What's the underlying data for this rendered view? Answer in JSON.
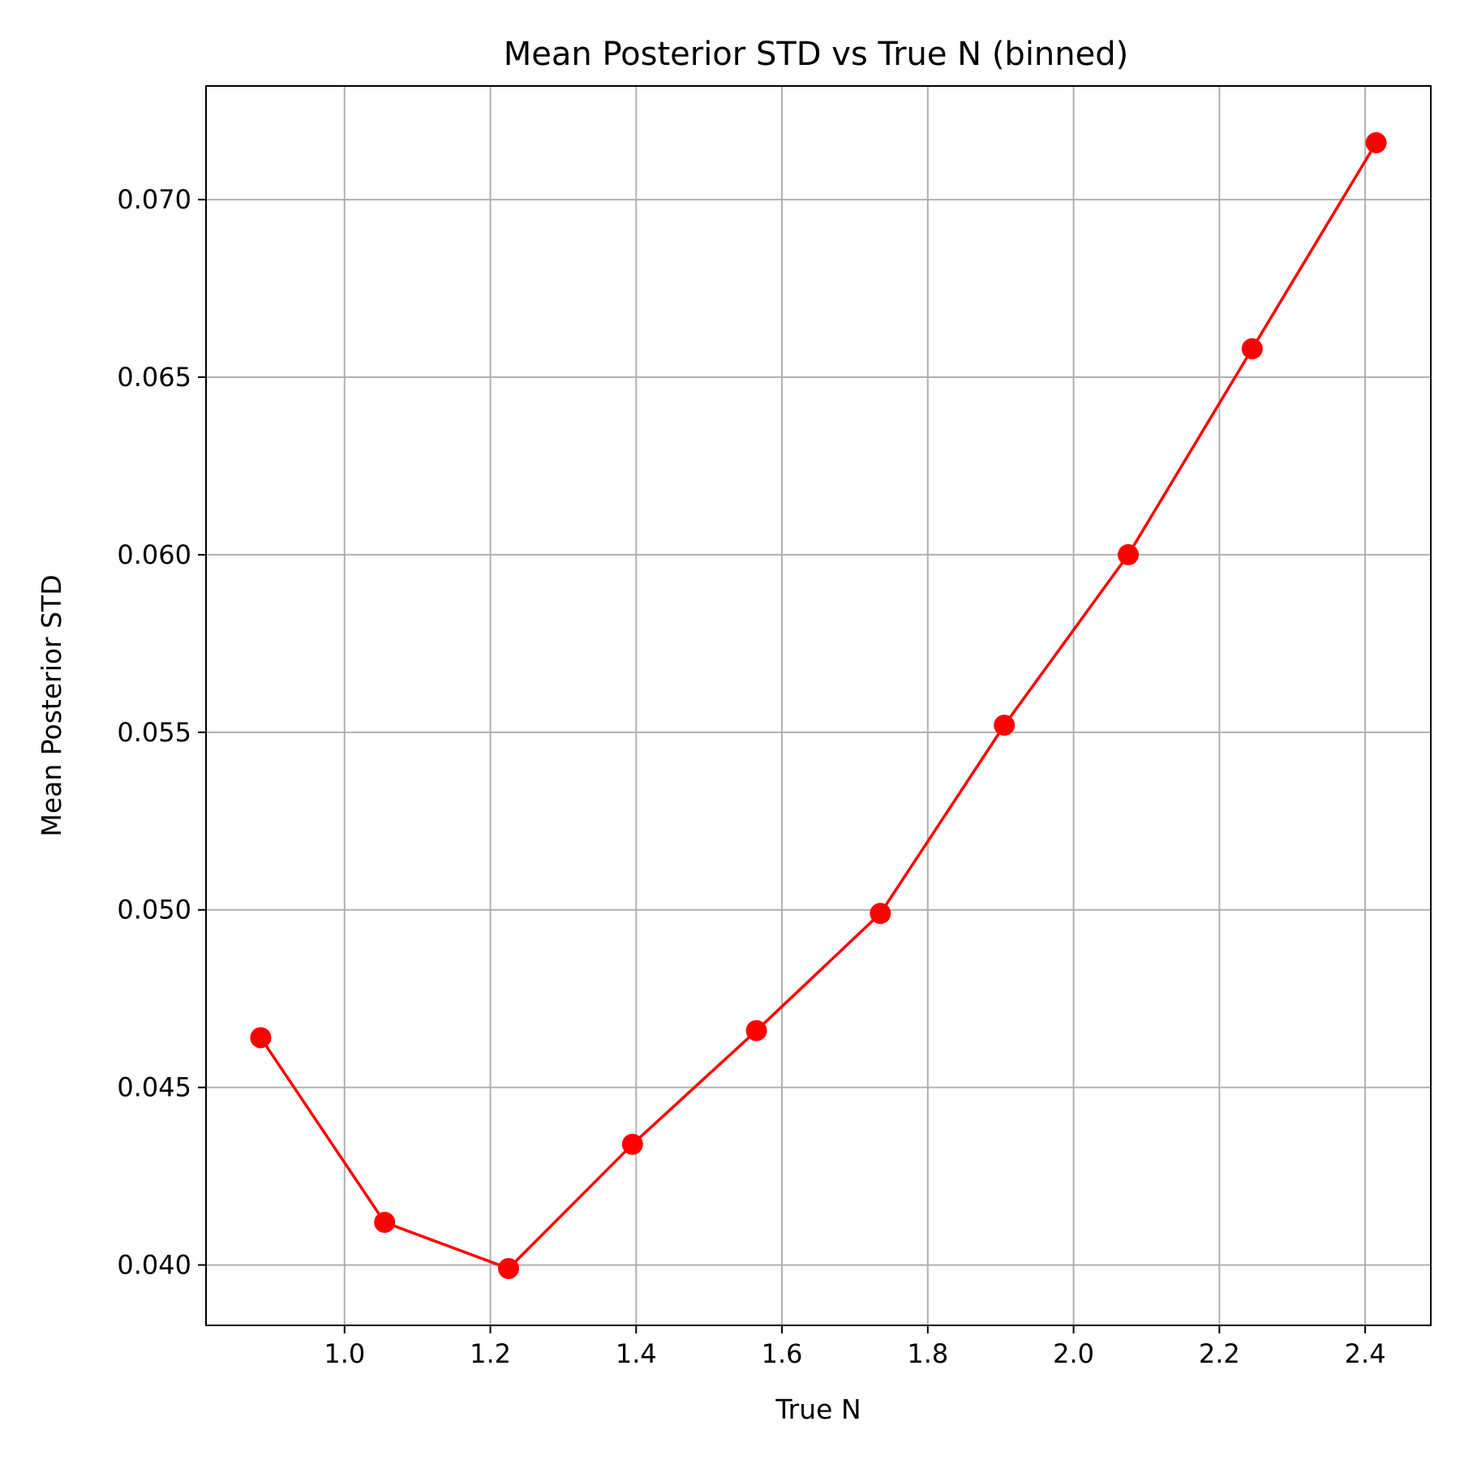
{
  "chart_data": {
    "type": "line",
    "title": "Mean Posterior STD vs True N (binned)",
    "xlabel": "True N",
    "ylabel": "Mean Posterior STD",
    "xlim": [
      0.81,
      2.49
    ],
    "ylim": [
      0.0383,
      0.0732
    ],
    "xticks": [
      1.0,
      1.2,
      1.4,
      1.6,
      1.8,
      2.0,
      2.2,
      2.4
    ],
    "xtick_labels": [
      "1.0",
      "1.2",
      "1.4",
      "1.6",
      "1.8",
      "2.0",
      "2.2",
      "2.4"
    ],
    "yticks": [
      0.04,
      0.045,
      0.05,
      0.055,
      0.06,
      0.065,
      0.07
    ],
    "ytick_labels": [
      "0.040",
      "0.045",
      "0.050",
      "0.055",
      "0.060",
      "0.065",
      "0.070"
    ],
    "grid": true,
    "series": [
      {
        "color": "#ff0000",
        "marker": "circle",
        "x": [
          0.885,
          1.055,
          1.225,
          1.395,
          1.565,
          1.735,
          1.905,
          2.075,
          2.245,
          2.415
        ],
        "y": [
          0.0464,
          0.0412,
          0.0399,
          0.0434,
          0.0466,
          0.0499,
          0.0552,
          0.06,
          0.0658,
          0.0716
        ]
      }
    ]
  }
}
